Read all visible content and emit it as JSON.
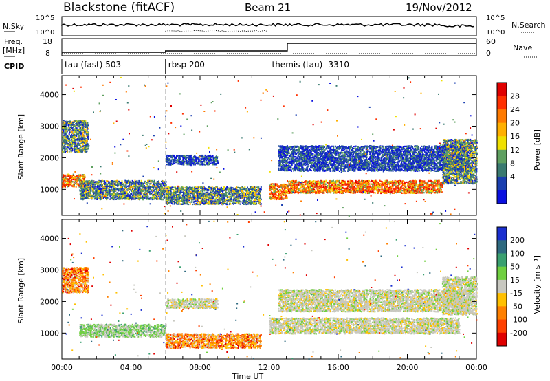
{
  "header": {
    "station": "Blackstone (fitACF)",
    "beam": "Beam 21",
    "date": "19/Nov/2012"
  },
  "panels": {
    "nsky_label": "N.Sky",
    "nsky_ticks": [
      "10^5",
      "10^0"
    ],
    "nsearch_label": "N.Search",
    "nsearch_ticks": [
      "10^5",
      "10^0"
    ],
    "freq_label": "Freq.",
    "freq_unit": "[MHz]",
    "freq_ticks": [
      "18",
      "8"
    ],
    "nave_label": "Nave",
    "nave_ticks": [
      "60",
      "0"
    ],
    "cpid_label": "CPID"
  },
  "cpid_segments": [
    {
      "start_hour": 0,
      "label": "tau (fast) 503"
    },
    {
      "start_hour": 6,
      "label": "rbsp 200"
    },
    {
      "start_hour": 12,
      "label": "themis (tau) -3310"
    }
  ],
  "chart_data": [
    {
      "type": "heatmap",
      "title": "",
      "xlabel": "Time UT",
      "ylabel": "Slant Range [km]",
      "x_ticks": [
        "00:00",
        "04:00",
        "08:00",
        "12:00",
        "16:00",
        "20:00",
        "00:00"
      ],
      "x_range_hours": [
        0,
        24
      ],
      "y_ticks": [
        1000,
        2000,
        3000,
        4000
      ],
      "ylim": [
        180,
        4600
      ],
      "colorbar": {
        "label": "Power [dB]",
        "ticks": [
          "28",
          "24",
          "20",
          "16",
          "12",
          "8",
          "4"
        ],
        "colors": [
          "#e00000",
          "#ff3000",
          "#ff7a00",
          "#ffb000",
          "#f0e000",
          "#5fa060",
          "#3a7a70",
          "#1a3fb0",
          "#0a10e0"
        ]
      },
      "echo_regions": [
        {
          "t0": 0.0,
          "t1": 1.3,
          "r0": 1100,
          "r1": 1500,
          "level": "high"
        },
        {
          "t0": 0.0,
          "t1": 1.5,
          "r0": 2200,
          "r1": 3200,
          "level": "mid"
        },
        {
          "t0": 1.0,
          "t1": 6.0,
          "r0": 700,
          "r1": 1300,
          "level": "mid"
        },
        {
          "t0": 6.0,
          "t1": 11.5,
          "r0": 550,
          "r1": 1100,
          "level": "mid"
        },
        {
          "t0": 6.0,
          "t1": 9.0,
          "r0": 1800,
          "r1": 2100,
          "level": "low"
        },
        {
          "t0": 12.0,
          "t1": 13.0,
          "r0": 700,
          "r1": 1200,
          "level": "high"
        },
        {
          "t0": 13.0,
          "t1": 22.0,
          "r0": 900,
          "r1": 1300,
          "level": "high"
        },
        {
          "t0": 12.5,
          "t1": 23.5,
          "r0": 1600,
          "r1": 2400,
          "level": "low"
        },
        {
          "t0": 22.0,
          "t1": 24.0,
          "r0": 1200,
          "r1": 2600,
          "level": "mid"
        }
      ]
    },
    {
      "type": "heatmap",
      "title": "",
      "xlabel": "Time UT",
      "ylabel": "Slant Range [km]",
      "x_ticks": [
        "00:00",
        "04:00",
        "08:00",
        "12:00",
        "16:00",
        "20:00",
        "00:00"
      ],
      "x_range_hours": [
        0,
        24
      ],
      "y_ticks": [
        1000,
        2000,
        3000,
        4000
      ],
      "ylim": [
        180,
        4600
      ],
      "colorbar": {
        "label": "Velocity [m s⁻¹]",
        "ticks": [
          "200",
          "100",
          "50",
          "15",
          "-15",
          "-50",
          "-100",
          "-200"
        ],
        "colors": [
          "#1a2fd0",
          "#2e6a80",
          "#3aa070",
          "#70d040",
          "#c8c8c0",
          "#ffc000",
          "#ff8000",
          "#ff4000",
          "#e00000"
        ]
      },
      "echo_regions": [
        {
          "t0": 0.0,
          "t1": 1.5,
          "r0": 2300,
          "r1": 3100,
          "level": "neg"
        },
        {
          "t0": 1.0,
          "t1": 6.0,
          "r0": 900,
          "r1": 1300,
          "level": "pos"
        },
        {
          "t0": 6.0,
          "t1": 11.5,
          "r0": 550,
          "r1": 1000,
          "level": "neg"
        },
        {
          "t0": 6.0,
          "t1": 9.0,
          "r0": 1800,
          "r1": 2100,
          "level": "zero"
        },
        {
          "t0": 12.0,
          "t1": 23.0,
          "r0": 1000,
          "r1": 1500,
          "level": "zero"
        },
        {
          "t0": 12.5,
          "t1": 23.5,
          "r0": 1700,
          "r1": 2400,
          "level": "zero"
        },
        {
          "t0": 22.0,
          "t1": 24.0,
          "r0": 1600,
          "r1": 2800,
          "level": "zero"
        }
      ]
    }
  ]
}
